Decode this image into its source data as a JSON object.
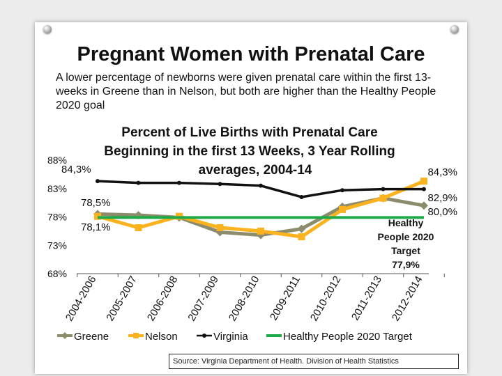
{
  "slide": {
    "title": "Pregnant Women with Prenatal Care",
    "subtitle": "A lower percentage of newborns were given prenatal care within the first 13-weeks in Greene than in Nelson, but both are higher than the Healthy People 2020 goal",
    "source": "Source: Virginia Department of Health. Division of Health Statistics"
  },
  "chart_data": {
    "type": "line",
    "title_lines": [
      "Percent of Live Births with Prenatal Care",
      "Beginning in the first 13 Weeks, 3 Year Rolling",
      "averages, 2004-14"
    ],
    "categories": [
      "2004-2006",
      "2005-2007",
      "2006-2008",
      "2007-2009",
      "2008-2010",
      "2009-2011",
      "2010-2012",
      "2011-2013",
      "2012-2014"
    ],
    "y_ticks": [
      "68%",
      "73%",
      "78%",
      "83%",
      "88%"
    ],
    "ylim": [
      68,
      88
    ],
    "series": [
      {
        "name": "Greene",
        "color": "#8c8c6c",
        "marker": "diamond",
        "values": [
          78.5,
          78.3,
          77.9,
          75.3,
          74.8,
          75.9,
          79.8,
          81.3,
          80.0
        ]
      },
      {
        "name": "Nelson",
        "color": "#fbb21f",
        "marker": "square",
        "values": [
          78.1,
          76.1,
          78.1,
          76.1,
          75.5,
          74.5,
          79.3,
          81.3,
          84.3
        ]
      },
      {
        "name": "Virginia",
        "color": "#111111",
        "marker": "circle",
        "values": [
          84.3,
          84.0,
          84.0,
          83.8,
          83.5,
          81.5,
          82.7,
          82.9,
          82.9
        ]
      },
      {
        "name": "Healthy People 2020 Target",
        "color": "#1faa4a",
        "marker": "none",
        "values": [
          77.9,
          77.9,
          77.9,
          77.9,
          77.9,
          77.9,
          77.9,
          77.9,
          77.9
        ]
      }
    ],
    "data_labels": {
      "virginia_start": "84,3%",
      "greene_start": "78,5%",
      "nelson_start": "78,1%",
      "nelson_end": "84,3%",
      "virginia_end": "82,9%",
      "greene_end": "80,0%",
      "target_lines": [
        "Healthy",
        "People 2020",
        "Target",
        "77,9%"
      ]
    },
    "legend": [
      "Greene",
      "Nelson",
      "Virginia",
      "Healthy People 2020 Target"
    ]
  }
}
